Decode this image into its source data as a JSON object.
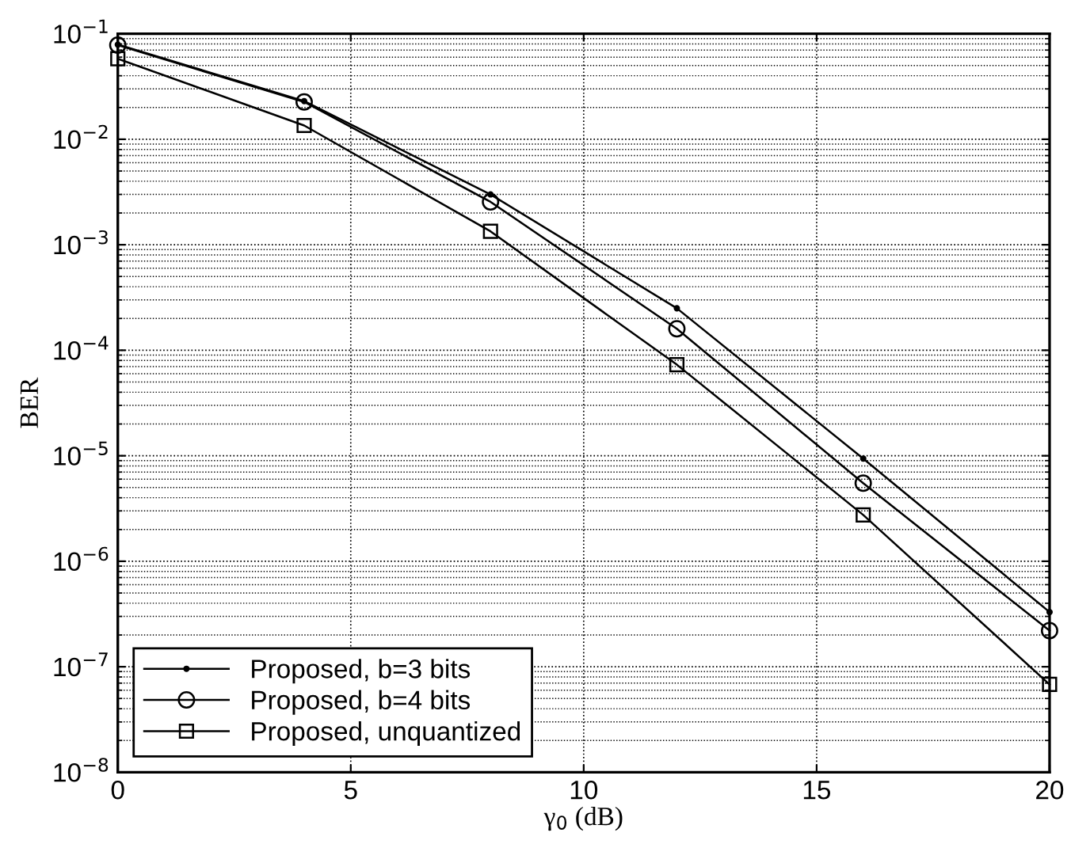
{
  "chart_data": {
    "type": "line",
    "xlabel": "γ$_{0}$ (dB)",
    "ylabel": "BER",
    "log": "y",
    "grid": true,
    "legend": "bottom left",
    "line_style": "solid",
    "x": [
      0,
      4,
      8,
      12,
      16,
      20
    ],
    "xlim": [
      0,
      20
    ],
    "xticks": [
      0,
      5,
      10,
      15,
      20
    ],
    "ylim": [
      1e-08,
      0.1
    ],
    "yticks": [
      {
        "value": 1e-08,
        "label": "10$^{−8}$"
      },
      {
        "value": 1e-07,
        "label": "10$^{−7}$"
      },
      {
        "value": 1e-06,
        "label": "10$^{−6}$"
      },
      {
        "value": 1e-05,
        "label": "10$^{−5}$"
      },
      {
        "value": 0.0001,
        "label": "10$^{−4}$"
      },
      {
        "value": 0.001,
        "label": "10$^{−3}$"
      },
      {
        "value": 0.01,
        "label": "10$^{−2}$"
      },
      {
        "value": 0.1,
        "label": "10$^{−1}$"
      }
    ],
    "series": [
      {
        "name": "Proposed, b=3 bits",
        "color": "#000000",
        "marker": "point",
        "values": [
          0.079,
          0.023,
          0.003,
          0.00025,
          9.4e-06,
          3.3e-07
        ]
      },
      {
        "name": "Proposed, b=4 bits",
        "color": "#000000",
        "marker": "circle",
        "values": [
          0.078,
          0.0226,
          0.00255,
          0.00016,
          5.5e-06,
          2.2e-07
        ]
      },
      {
        "name": "Proposed, unquantized",
        "color": "#000000",
        "marker": "square",
        "values": [
          0.058,
          0.0135,
          0.00134,
          7.3e-05,
          2.75e-06,
          6.8e-08
        ]
      }
    ]
  }
}
